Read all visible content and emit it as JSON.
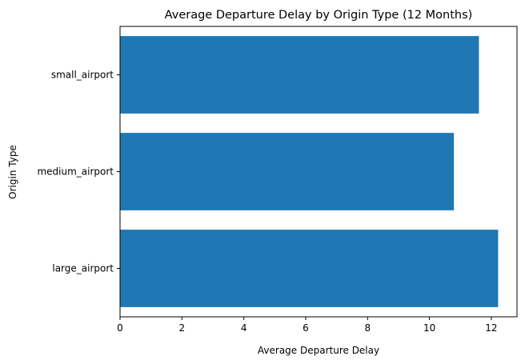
{
  "chart_data": {
    "type": "bar",
    "orientation": "horizontal",
    "title": "Average Departure Delay by Origin Type (12 Months)",
    "xlabel": "Average Departure Delay",
    "ylabel": "Origin Type",
    "categories": [
      "large_airport",
      "medium_airport",
      "small_airport"
    ],
    "values": [
      12.22,
      10.79,
      11.6
    ],
    "xlim": [
      0,
      12.83
    ],
    "xticks": [
      0,
      2,
      4,
      6,
      8,
      10,
      12
    ],
    "bar_color": "#1f77b4",
    "grid": false
  }
}
